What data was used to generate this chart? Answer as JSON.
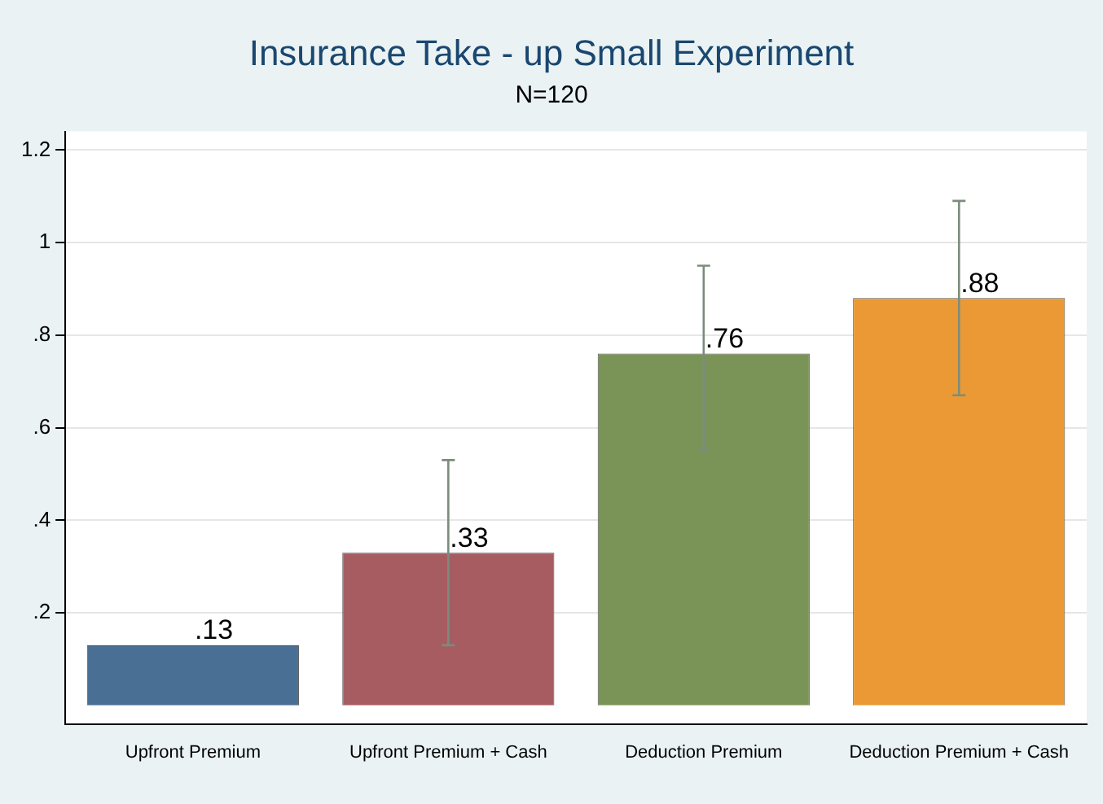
{
  "chart_data": {
    "type": "bar",
    "title": "Insurance Take - up Small Experiment",
    "subtitle": "N=120",
    "categories": [
      "Upfront Premium",
      "Upfront Premium + Cash",
      "Deduction Premium",
      "Deduction Premium + Cash"
    ],
    "values": [
      0.13,
      0.33,
      0.76,
      0.88
    ],
    "value_labels": [
      ".13",
      ".33",
      ".76",
      ".88"
    ],
    "colors": [
      "#4a6f94",
      "#a65c61",
      "#7a9458",
      "#ea9934"
    ],
    "errors": [
      null,
      [
        0.13,
        0.53
      ],
      [
        0.55,
        0.95
      ],
      [
        0.67,
        1.09
      ]
    ],
    "ylim": [
      -0.04,
      1.24
    ],
    "yticks": [
      {
        "value": 0.2,
        "label": ".2"
      },
      {
        "value": 0.4,
        "label": ".4"
      },
      {
        "value": 0.6,
        "label": ".6"
      },
      {
        "value": 0.8,
        "label": ".8"
      },
      {
        "value": 1,
        "label": "1"
      },
      {
        "value": 1.2,
        "label": "1.2"
      }
    ],
    "grid": "y",
    "legend": false
  }
}
